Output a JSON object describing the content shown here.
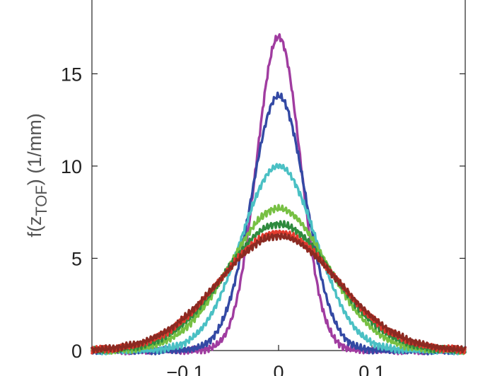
{
  "chart_data": {
    "type": "line",
    "title": "",
    "xlabel": "",
    "ylabel": {
      "prefix": "f(z",
      "subscript": "TOF",
      "suffix": ") (1/mm)"
    },
    "xlim": [
      -0.2,
      0.2
    ],
    "ylim": [
      0,
      19
    ],
    "xticks": [
      -0.1,
      0,
      0.1
    ],
    "xtick_labels": [
      "−0.1",
      "0",
      "0.1"
    ],
    "yticks": [
      0,
      5,
      10,
      15
    ],
    "ytick_labels": [
      "0",
      "5",
      "10",
      "15"
    ],
    "grid": false,
    "legend": "none",
    "series": [
      {
        "color": "#a03ca0",
        "peak": 17.0,
        "sigma": 0.0235
      },
      {
        "color": "#3349a4",
        "peak": 13.8,
        "sigma": 0.029
      },
      {
        "color": "#4ac0c4",
        "peak": 10.0,
        "sigma": 0.04
      },
      {
        "color": "#77c043",
        "peak": 7.7,
        "sigma": 0.052
      },
      {
        "color": "#2f8a3e",
        "peak": 6.85,
        "sigma": 0.058
      },
      {
        "color": "#e23b2e",
        "peak": 6.4,
        "sigma": 0.062
      },
      {
        "color": "#8b2a22",
        "peak": 6.2,
        "sigma": 0.064
      }
    ]
  }
}
